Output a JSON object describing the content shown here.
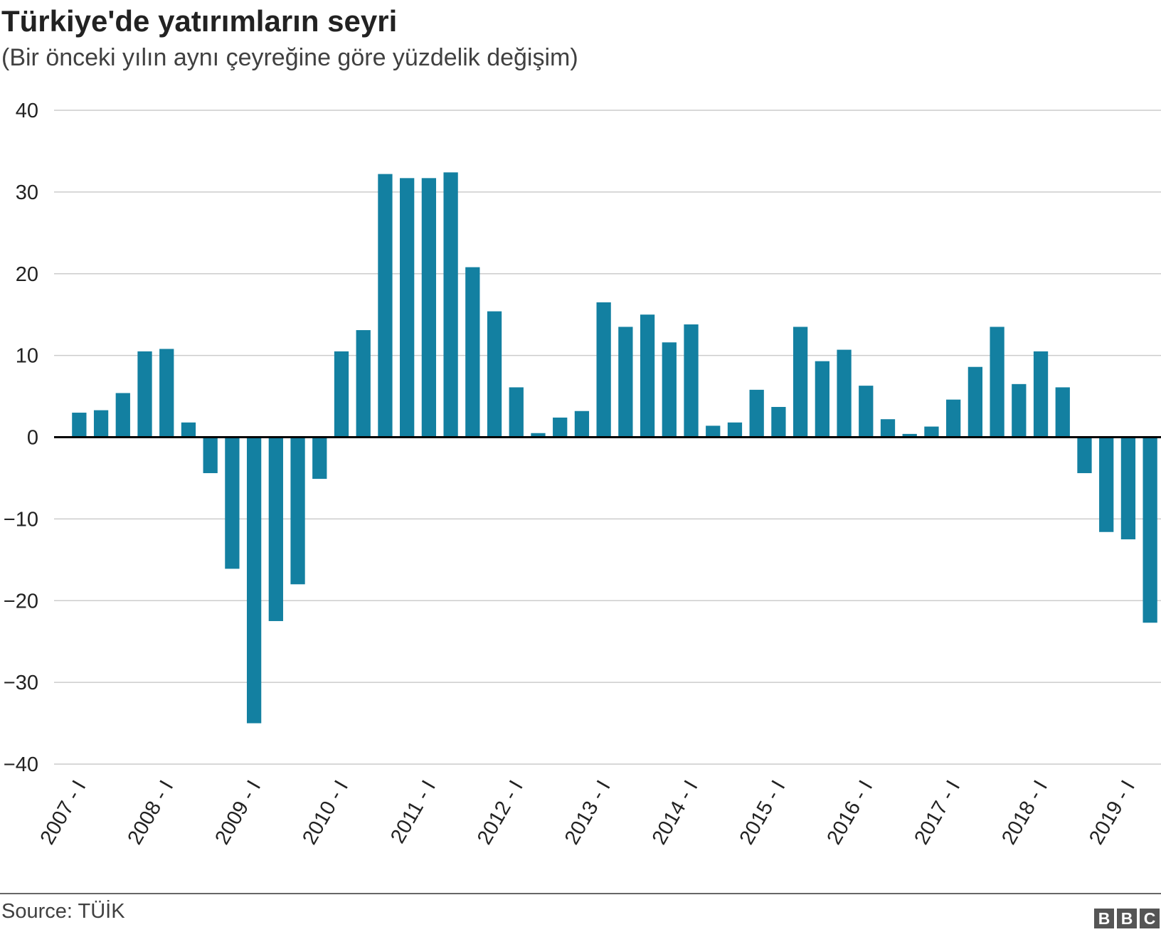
{
  "chart_data": {
    "type": "bar",
    "title": "Türkiye'de yatırımların seyri",
    "subtitle": "(Bir önceki yılın aynı çeyreğine göre yüzdelik değişim)",
    "xlabel": "",
    "ylabel": "",
    "ylim": [
      -40,
      40
    ],
    "yticks": [
      40,
      30,
      20,
      10,
      0,
      -10,
      -20,
      -30,
      -40
    ],
    "ytick_labels": [
      "40",
      "30",
      "20",
      "10",
      "0",
      "−10",
      "−20",
      "−30",
      "−40"
    ],
    "grid": true,
    "bar_color": "#1380A1",
    "x_tick_labels": [
      "2007 - I",
      "2008 - I",
      "2009 - I",
      "2010 - I",
      "2011 - I",
      "2012 - I",
      "2013 - I",
      "2014 - I",
      "2015 - I",
      "2016 - I",
      "2017 - I",
      "2018 - I",
      "2019 - I"
    ],
    "values": [
      3.0,
      3.3,
      5.4,
      10.5,
      10.8,
      1.8,
      -4.4,
      -16.1,
      -35.0,
      -22.5,
      -18.0,
      -5.1,
      10.5,
      13.1,
      32.2,
      31.7,
      31.7,
      32.4,
      20.8,
      15.4,
      6.1,
      0.5,
      2.4,
      3.2,
      16.5,
      13.5,
      15.0,
      11.6,
      13.8,
      1.4,
      1.8,
      5.8,
      3.7,
      13.5,
      9.3,
      10.7,
      6.3,
      2.2,
      0.4,
      1.3,
      4.6,
      8.6,
      13.5,
      6.5,
      10.5,
      6.1,
      -4.4,
      -11.6,
      -12.5,
      -22.7
    ]
  },
  "footer": {
    "source": "Source: TÜİK",
    "logo": "BBC"
  }
}
